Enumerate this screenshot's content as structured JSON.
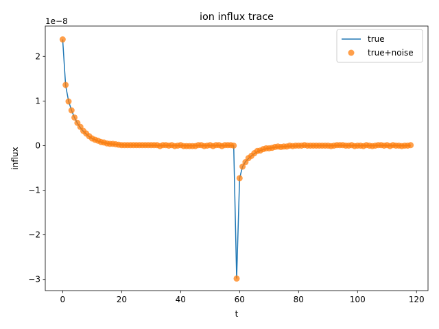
{
  "chart_data": {
    "type": "line",
    "title": "ion influx trace",
    "xlabel": "t",
    "ylabel": "influx",
    "offset_text": "1e−8",
    "xlim": [
      -5.9,
      123.9
    ],
    "ylim": [
      -3.25,
      2.68
    ],
    "x_ticks": [
      0,
      20,
      40,
      60,
      80,
      100,
      120
    ],
    "y_ticks": [
      -3,
      -2,
      -1,
      0,
      1,
      2
    ],
    "x_tick_labels": [
      "0",
      "20",
      "40",
      "60",
      "80",
      "100",
      "120"
    ],
    "y_tick_labels": [
      "−3",
      "−2",
      "−1",
      "0",
      "1",
      "2"
    ],
    "legend": {
      "position": "top-right"
    },
    "colors": {
      "line": "#1f77b4",
      "scatter": "#ff7f0e"
    },
    "series": [
      {
        "name": "true",
        "style": "line",
        "x": [
          0,
          1,
          2,
          3,
          4,
          5,
          6,
          7,
          8,
          9,
          10,
          11,
          12,
          13,
          14,
          15,
          16,
          17,
          18,
          19,
          20,
          21,
          22,
          23,
          24,
          25,
          26,
          27,
          28,
          29,
          30,
          31,
          32,
          33,
          34,
          35,
          36,
          37,
          38,
          39,
          40,
          41,
          42,
          43,
          44,
          45,
          46,
          47,
          48,
          49,
          50,
          51,
          52,
          53,
          54,
          55,
          56,
          57,
          58,
          59,
          60,
          61,
          62,
          63,
          64,
          65,
          66,
          67,
          68,
          69,
          70,
          71,
          72,
          73,
          74,
          75,
          76,
          77,
          78,
          79,
          80,
          81,
          82,
          83,
          84,
          85,
          86,
          87,
          88,
          89,
          90,
          91,
          92,
          93,
          94,
          95,
          96,
          97,
          98,
          99,
          100,
          101,
          102,
          103,
          104,
          105,
          106,
          107,
          108,
          109,
          110,
          111,
          112,
          113,
          114,
          115,
          116,
          117,
          118
        ],
        "y": [
          2.38,
          1.35,
          1.0,
          0.79,
          0.63,
          0.5,
          0.4,
          0.32,
          0.26,
          0.2,
          0.16,
          0.13,
          0.1,
          0.08,
          0.065,
          0.05,
          0.04,
          0.032,
          0.025,
          0.02,
          0.016,
          0.013,
          0.01,
          0.008,
          0.006,
          0.005,
          0.004,
          0.003,
          0.002,
          0.002,
          0.001,
          0.001,
          0.001,
          0,
          0,
          0,
          0,
          0,
          0,
          0,
          0,
          0,
          0,
          0,
          0,
          0,
          0,
          0,
          0,
          0,
          0,
          0,
          0,
          0,
          0,
          0,
          0,
          0,
          0,
          -2.98,
          -0.73,
          -0.47,
          -0.36,
          -0.29,
          -0.23,
          -0.18,
          -0.14,
          -0.11,
          -0.09,
          -0.07,
          -0.06,
          -0.05,
          -0.04,
          -0.03,
          -0.025,
          -0.02,
          -0.016,
          -0.013,
          -0.01,
          -0.008,
          -0.006,
          -0.005,
          -0.004,
          -0.003,
          -0.002,
          -0.002,
          -0.001,
          -0.001,
          0,
          0,
          0,
          0,
          0,
          0,
          0,
          0,
          0,
          0,
          0,
          0,
          0,
          0,
          0,
          0,
          0,
          0,
          0,
          0,
          0,
          0,
          0,
          0,
          0,
          0,
          0,
          0,
          0,
          0,
          0
        ]
      },
      {
        "name": "true+noise",
        "style": "scatter",
        "x": [
          0,
          1,
          2,
          3,
          4,
          5,
          6,
          7,
          8,
          9,
          10,
          11,
          12,
          13,
          14,
          15,
          16,
          17,
          18,
          19,
          20,
          21,
          22,
          23,
          24,
          25,
          26,
          27,
          28,
          29,
          30,
          31,
          32,
          33,
          34,
          35,
          36,
          37,
          38,
          39,
          40,
          41,
          42,
          43,
          44,
          45,
          46,
          47,
          48,
          49,
          50,
          51,
          52,
          53,
          54,
          55,
          56,
          57,
          58,
          59,
          60,
          61,
          62,
          63,
          64,
          65,
          66,
          67,
          68,
          69,
          70,
          71,
          72,
          73,
          74,
          75,
          76,
          77,
          78,
          79,
          80,
          81,
          82,
          83,
          84,
          85,
          86,
          87,
          88,
          89,
          90,
          91,
          92,
          93,
          94,
          95,
          96,
          97,
          98,
          99,
          100,
          101,
          102,
          103,
          104,
          105,
          106,
          107,
          108,
          109,
          110,
          111,
          112,
          113,
          114,
          115,
          116,
          117,
          118
        ],
        "y": [
          2.38,
          1.36,
          0.99,
          0.79,
          0.63,
          0.51,
          0.42,
          0.33,
          0.27,
          0.21,
          0.16,
          0.13,
          0.11,
          0.08,
          0.07,
          0.05,
          0.04,
          0.04,
          0.03,
          0.02,
          0.01,
          0.01,
          0.01,
          0.01,
          0.01,
          0.01,
          0.01,
          0.01,
          0.01,
          0.01,
          0.01,
          0.01,
          0.01,
          -0.01,
          0.01,
          0.01,
          0.0,
          0.01,
          -0.01,
          0.0,
          0.01,
          -0.01,
          -0.01,
          -0.01,
          -0.01,
          -0.01,
          0.01,
          0.01,
          -0.01,
          0.0,
          0.01,
          -0.01,
          0.01,
          0.01,
          -0.01,
          0.01,
          0.01,
          0.01,
          0.0,
          -2.98,
          -0.73,
          -0.47,
          -0.37,
          -0.28,
          -0.23,
          -0.17,
          -0.12,
          -0.11,
          -0.08,
          -0.06,
          -0.06,
          -0.05,
          -0.03,
          -0.02,
          -0.03,
          -0.02,
          -0.02,
          0.0,
          -0.01,
          0.0,
          0.0,
          0.0,
          0.01,
          0.0,
          0.0,
          0.0,
          0.0,
          0.0,
          0.0,
          0.0,
          0.0,
          -0.01,
          0.0,
          0.01,
          0.01,
          0.01,
          0.0,
          0.0,
          0.01,
          -0.01,
          0.0,
          0.0,
          -0.01,
          0.01,
          0.0,
          -0.01,
          0.0,
          0.01,
          0.01,
          0.0,
          0.01,
          -0.01,
          0.01,
          0.0,
          0.0,
          -0.01,
          0.0,
          0.0,
          0.01
        ]
      }
    ]
  }
}
